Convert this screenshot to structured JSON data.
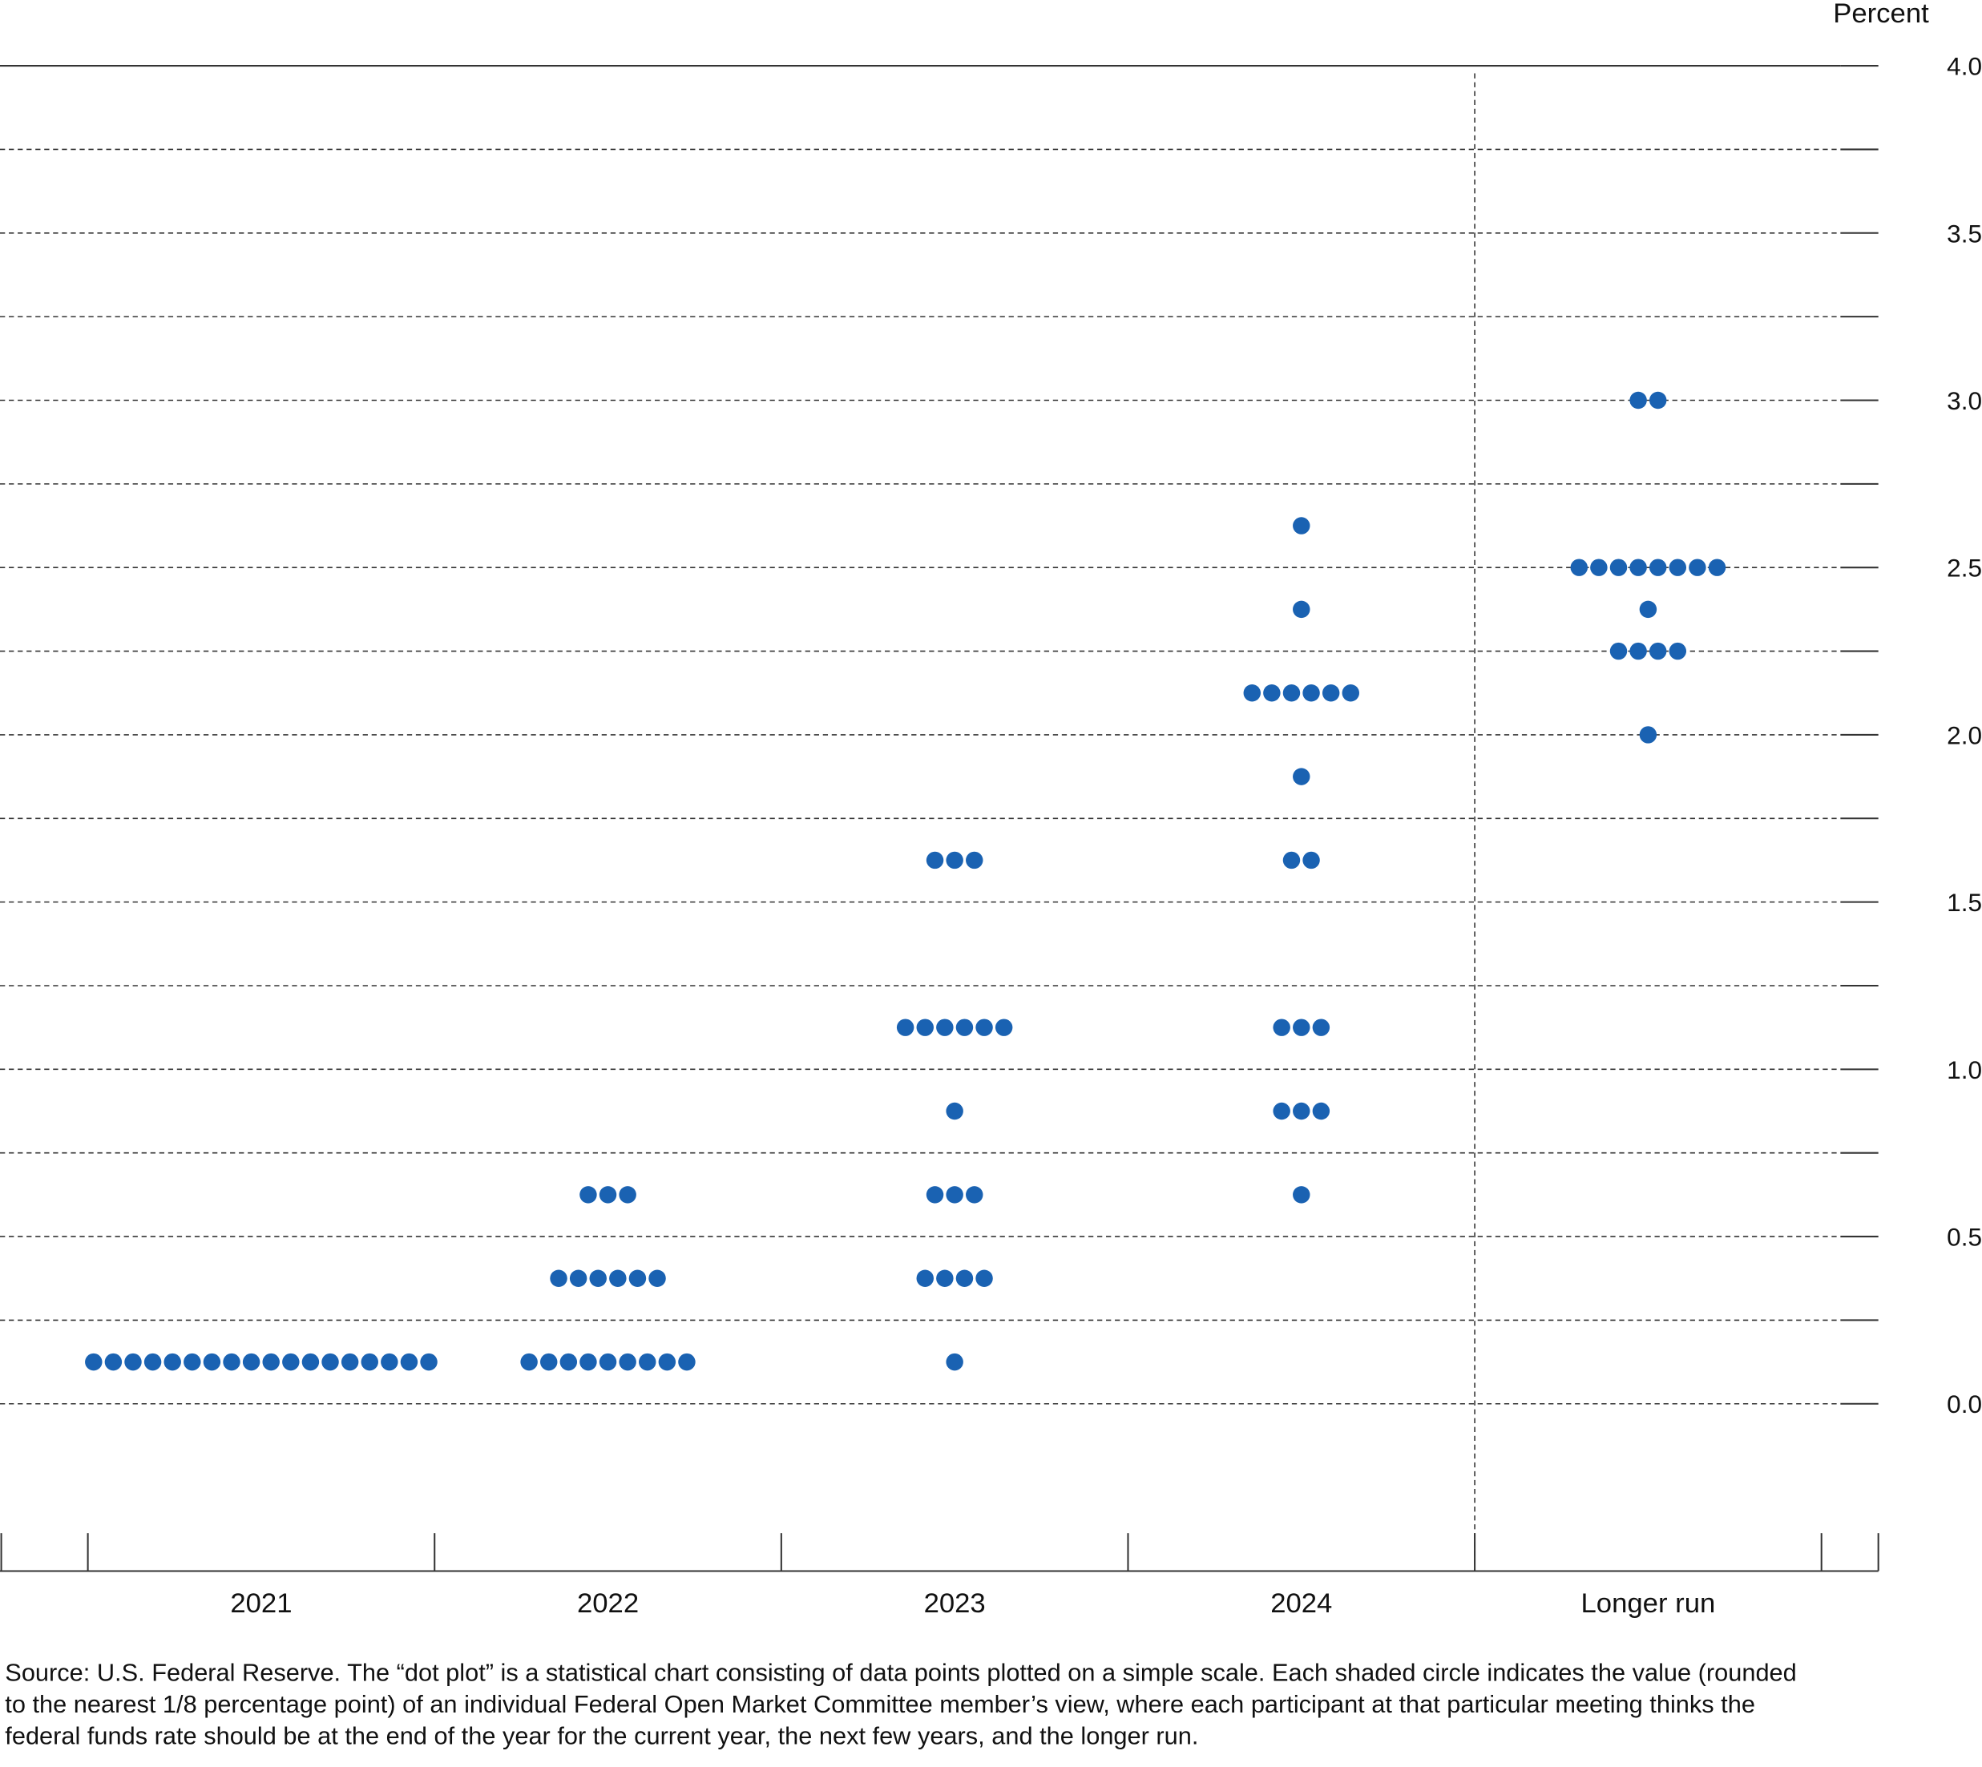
{
  "chart_data": {
    "type": "dot",
    "y_axis_label": "Percent",
    "categories": [
      "2021",
      "2022",
      "2023",
      "2024",
      "Longer run"
    ],
    "values": [
      [
        0.125,
        0.125,
        0.125,
        0.125,
        0.125,
        0.125,
        0.125,
        0.125,
        0.125,
        0.125,
        0.125,
        0.125,
        0.125,
        0.125,
        0.125,
        0.125,
        0.125,
        0.125
      ],
      [
        0.125,
        0.125,
        0.125,
        0.125,
        0.125,
        0.125,
        0.125,
        0.125,
        0.125,
        0.375,
        0.375,
        0.375,
        0.375,
        0.375,
        0.375,
        0.625,
        0.625,
        0.625
      ],
      [
        0.125,
        0.375,
        0.375,
        0.375,
        0.375,
        0.625,
        0.625,
        0.625,
        0.875,
        1.125,
        1.125,
        1.125,
        1.125,
        1.125,
        1.125,
        1.625,
        1.625,
        1.625
      ],
      [
        0.625,
        0.875,
        0.875,
        0.875,
        1.125,
        1.125,
        1.125,
        1.625,
        1.625,
        1.875,
        2.125,
        2.125,
        2.125,
        2.125,
        2.125,
        2.125,
        2.375,
        2.625
      ],
      [
        2.0,
        2.25,
        2.25,
        2.25,
        2.25,
        2.375,
        2.5,
        2.5,
        2.5,
        2.5,
        2.5,
        2.5,
        2.5,
        2.5,
        3.0,
        3.0
      ]
    ],
    "color": "#1a62b2",
    "ylim": [
      -0.5,
      4.0
    ],
    "yticks": [
      {
        "value": 0,
        "label": "0.0"
      },
      {
        "value": 0.5,
        "label": "0.5"
      },
      {
        "value": 1,
        "label": "1.0"
      },
      {
        "value": 1.5,
        "label": "1.5"
      },
      {
        "value": 2,
        "label": "2.0"
      },
      {
        "value": 2.5,
        "label": "2.5"
      },
      {
        "value": 3,
        "label": "3.0"
      },
      {
        "value": 3.5,
        "label": "3.5"
      },
      {
        "value": 4,
        "label": "4.0"
      }
    ],
    "minor_yticks": [
      0.25,
      0.75,
      1.25,
      1.75,
      2.25,
      2.75,
      3.25,
      3.75
    ],
    "grid": true,
    "y_axis_side": "right",
    "note": "Source: U.S. Federal Reserve. The “dot plot” is a statistical chart consisting of data points plotted on a simple scale. Each shaded circle indicates the value (rounded to the nearest 1/8 percentage point) of an individual Federal Open Market Committee member’s view, where each participant at that particular meeting thinks the federal funds rate should be at the end of the year for the current year, the next few years, and the longer run."
  }
}
